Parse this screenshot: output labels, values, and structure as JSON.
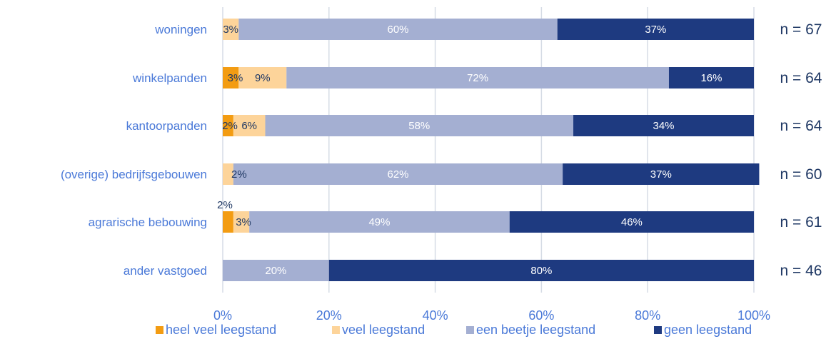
{
  "colors": {
    "heel_veel": "#F39C12",
    "veel": "#FDD49A",
    "een_beetje": "#A4AFD2",
    "geen": "#1E3A80",
    "label_text": "#4A79D8",
    "n_text": "#1F3864",
    "grid": "#D6DCE5"
  },
  "chart_data": {
    "type": "bar",
    "orientation": "horizontal",
    "stacked": true,
    "categories": [
      "woningen",
      "winkelpanden",
      "kantoorpanden",
      "(overige) bedrijfsgebouwen",
      "agrarische bebouwing",
      "ander vastgoed"
    ],
    "series": [
      {
        "name": "heel veel leegstand",
        "values": [
          0,
          3,
          2,
          0,
          2,
          0
        ],
        "labels": [
          "",
          "3%",
          "2%",
          "",
          "2%",
          ""
        ]
      },
      {
        "name": "veel leegstand",
        "values": [
          3,
          9,
          6,
          2,
          3,
          0
        ],
        "labels": [
          "3%",
          "9%",
          "6%",
          "2%",
          "3%",
          ""
        ]
      },
      {
        "name": "een beetje leegstand",
        "values": [
          60,
          72,
          58,
          62,
          49,
          20
        ],
        "labels": [
          "60%",
          "72%",
          "58%",
          "62%",
          "49%",
          "20%"
        ]
      },
      {
        "name": "geen leegstand",
        "values": [
          37,
          16,
          34,
          37,
          46,
          80
        ],
        "labels": [
          "37%",
          "16%",
          "34%",
          "37%",
          "46%",
          "80%"
        ]
      }
    ],
    "n_labels": [
      "n = 67",
      "n = 64",
      "n = 64",
      "n = 60",
      "n = 61",
      "n = 46"
    ],
    "xlim": [
      0,
      100
    ],
    "x_ticks": [
      "0%",
      "20%",
      "40%",
      "60%",
      "80%",
      "100%"
    ],
    "grid": true,
    "legend_position": "bottom",
    "title": "",
    "xlabel": "",
    "ylabel": ""
  }
}
